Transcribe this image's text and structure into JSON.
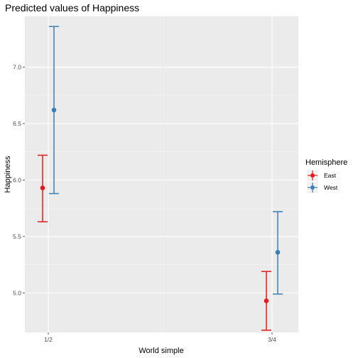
{
  "chart_data": {
    "type": "errorbar",
    "title": "Predicted values of Happiness",
    "xlabel": "World simple",
    "ylabel": "Happiness",
    "categories": [
      "1/2",
      "3/4"
    ],
    "ylim": [
      4.65,
      7.45
    ],
    "yticks": [
      5.0,
      5.5,
      6.0,
      6.5,
      7.0
    ],
    "ytick_labels": [
      "5.0",
      "5.5",
      "6.0",
      "6.5",
      "7.0"
    ],
    "grid": true,
    "legend": {
      "title": "Hemisphere",
      "position": "right"
    },
    "series": [
      {
        "name": "East",
        "color": "#e41a1c",
        "values": [
          5.93,
          4.93
        ],
        "lower": [
          5.63,
          4.67
        ],
        "upper": [
          6.22,
          5.19
        ]
      },
      {
        "name": "West",
        "color": "#377eb8",
        "values": [
          6.62,
          5.36
        ],
        "lower": [
          5.88,
          4.99
        ],
        "upper": [
          7.36,
          5.72
        ]
      }
    ]
  }
}
